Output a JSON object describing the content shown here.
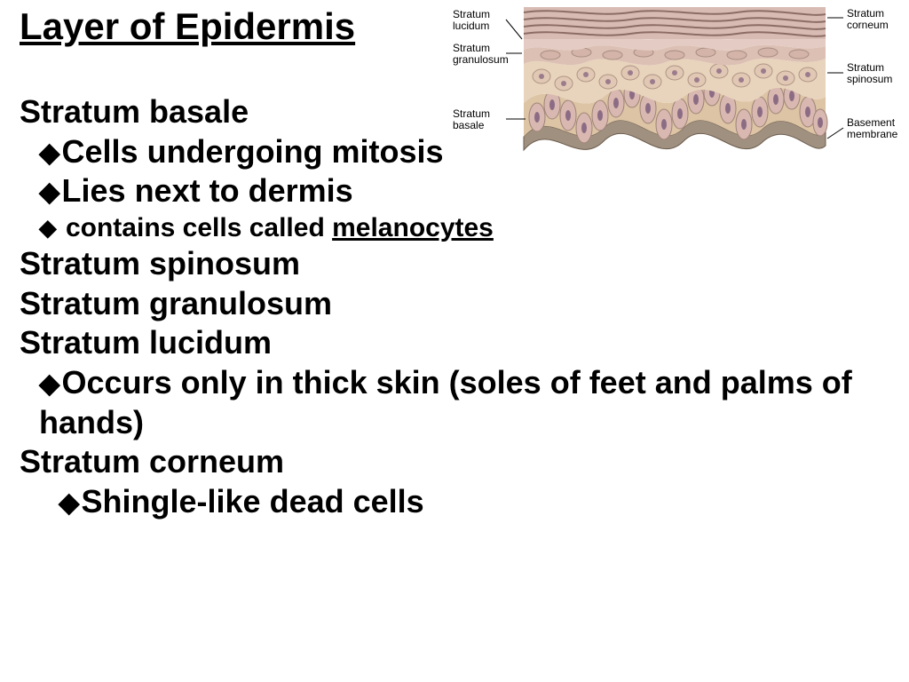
{
  "title": "Layer of Epidermis",
  "body": {
    "basale": {
      "heading": "Stratum basale",
      "b1": "Cells undergoing mitosis",
      "b2": "Lies next to dermis",
      "b3a": "contains cells called ",
      "b3b": "melanocytes"
    },
    "spinosum": "Stratum spinosum",
    "granulosum": "Stratum granulosum",
    "lucidum": {
      "heading": "Stratum lucidum",
      "b1": "Occurs only in thick skin (soles of feet and palms of hands)"
    },
    "corneum": {
      "heading": "Stratum corneum",
      "b1": "Shingle-like dead cells"
    }
  },
  "diagram": {
    "labels": {
      "left": {
        "lucidum": "Stratum\nlucidum",
        "granulosum": "Stratum\ngranulosum",
        "basale": "Stratum\nbasale"
      },
      "right": {
        "corneum": "Stratum\ncorneum",
        "spinosum": "Stratum\nspinosum",
        "basement": "Basement\nmembrane"
      }
    },
    "colors": {
      "corneum_top": "#c8a8a0",
      "corneum_stroke": "#8c6c64",
      "lucidum": "#e4ccc4",
      "granulosum": "#dcc0b4",
      "spinosum": "#e8d4bc",
      "basale": "#dcc4a4",
      "basement": "#a09080",
      "cell_fill": "#d8b8b0",
      "cell_stroke": "#a08478",
      "nucleus": "#8c6c84",
      "leader": "#000000"
    },
    "label_fontsize": 12
  }
}
